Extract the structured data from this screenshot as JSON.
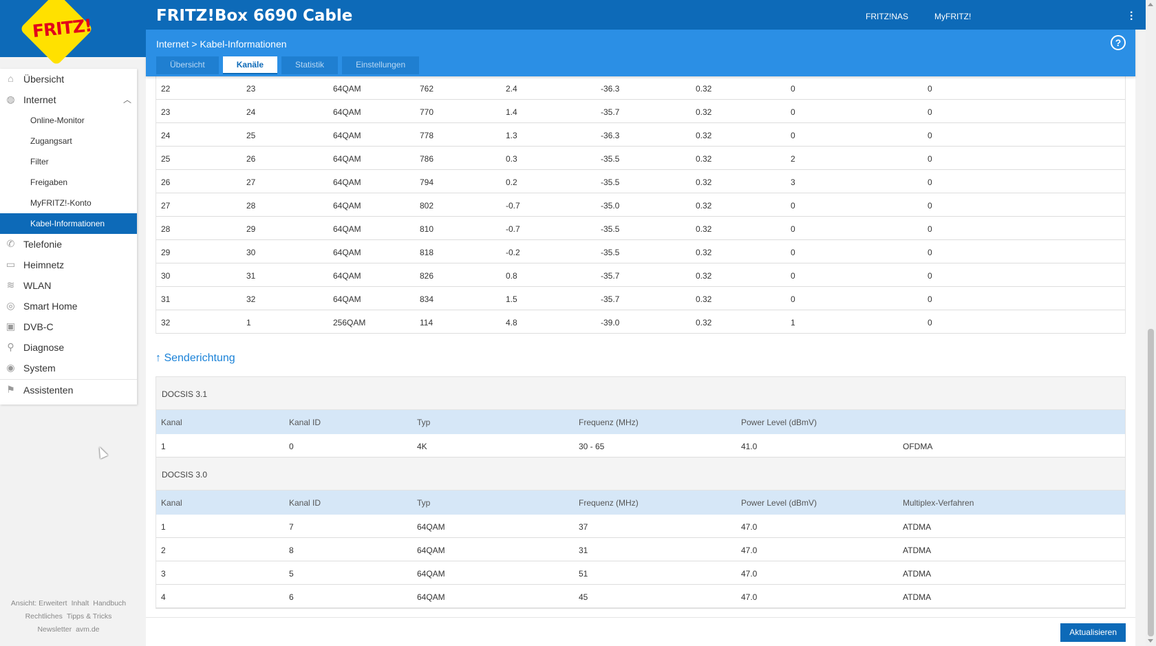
{
  "header": {
    "logo_text": "FRITZ!",
    "title": "FRITZ!Box 6690 Cable",
    "links": [
      "FRITZ!NAS",
      "MyFRITZ!"
    ]
  },
  "breadcrumb": {
    "parent": "Internet",
    "separator": ">",
    "current": "Kabel-Informationen"
  },
  "tabs": [
    {
      "label": "Übersicht",
      "active": false
    },
    {
      "label": "Kanäle",
      "active": true
    },
    {
      "label": "Statistik",
      "active": false
    },
    {
      "label": "Einstellungen",
      "active": false
    }
  ],
  "sidebar": {
    "items": [
      {
        "label": "Übersicht",
        "icon": "home-icon"
      },
      {
        "label": "Internet",
        "icon": "globe-icon",
        "expanded": true
      },
      {
        "label": "Telefonie",
        "icon": "phone-icon"
      },
      {
        "label": "Heimnetz",
        "icon": "network-icon"
      },
      {
        "label": "WLAN",
        "icon": "wifi-icon"
      },
      {
        "label": "Smart Home",
        "icon": "smarthome-icon"
      },
      {
        "label": "DVB-C",
        "icon": "tv-icon"
      },
      {
        "label": "Diagnose",
        "icon": "diagnose-icon"
      },
      {
        "label": "System",
        "icon": "system-icon"
      },
      {
        "label": "Assistenten",
        "icon": "wizard-icon"
      }
    ],
    "internet_sub": [
      "Online-Monitor",
      "Zugangsart",
      "Filter",
      "Freigaben",
      "MyFRITZ!-Konto",
      "Kabel-Informationen"
    ],
    "footer": [
      "Ansicht: Erweitert",
      "Inhalt",
      "Handbuch",
      "Rechtliches",
      "Tipps & Tricks",
      "Newsletter",
      "avm.de"
    ]
  },
  "downstream_rows": [
    [
      "22",
      "23",
      "64QAM",
      "762",
      "2.4",
      "-36.3",
      "0.32",
      "0",
      "0"
    ],
    [
      "23",
      "24",
      "64QAM",
      "770",
      "1.4",
      "-35.7",
      "0.32",
      "0",
      "0"
    ],
    [
      "24",
      "25",
      "64QAM",
      "778",
      "1.3",
      "-36.3",
      "0.32",
      "0",
      "0"
    ],
    [
      "25",
      "26",
      "64QAM",
      "786",
      "0.3",
      "-35.5",
      "0.32",
      "2",
      "0"
    ],
    [
      "26",
      "27",
      "64QAM",
      "794",
      "0.2",
      "-35.5",
      "0.32",
      "3",
      "0"
    ],
    [
      "27",
      "28",
      "64QAM",
      "802",
      "-0.7",
      "-35.0",
      "0.32",
      "0",
      "0"
    ],
    [
      "28",
      "29",
      "64QAM",
      "810",
      "-0.7",
      "-35.5",
      "0.32",
      "0",
      "0"
    ],
    [
      "29",
      "30",
      "64QAM",
      "818",
      "-0.2",
      "-35.5",
      "0.32",
      "0",
      "0"
    ],
    [
      "30",
      "31",
      "64QAM",
      "826",
      "0.8",
      "-35.7",
      "0.32",
      "0",
      "0"
    ],
    [
      "31",
      "32",
      "64QAM",
      "834",
      "1.5",
      "-35.7",
      "0.32",
      "0",
      "0"
    ],
    [
      "32",
      "1",
      "256QAM",
      "114",
      "4.8",
      "-39.0",
      "0.32",
      "1",
      "0"
    ]
  ],
  "upstream": {
    "title": "↑ Senderichtung",
    "docsis31": {
      "label": "DOCSIS 3.1",
      "headers": [
        "Kanal",
        "Kanal ID",
        "Typ",
        "Frequenz (MHz)",
        "Power Level (dBmV)",
        ""
      ],
      "rows": [
        [
          "1",
          "0",
          "4K",
          "30 - 65",
          "41.0",
          "OFDMA"
        ]
      ]
    },
    "docsis30": {
      "label": "DOCSIS 3.0",
      "headers": [
        "Kanal",
        "Kanal ID",
        "Typ",
        "Frequenz (MHz)",
        "Power Level (dBmV)",
        "Multiplex-Verfahren"
      ],
      "rows": [
        [
          "1",
          "7",
          "64QAM",
          "37",
          "47.0",
          "ATDMA"
        ],
        [
          "2",
          "8",
          "64QAM",
          "31",
          "47.0",
          "ATDMA"
        ],
        [
          "3",
          "5",
          "64QAM",
          "51",
          "47.0",
          "ATDMA"
        ],
        [
          "4",
          "6",
          "64QAM",
          "45",
          "47.0",
          "ATDMA"
        ]
      ]
    }
  },
  "refresh_button": "Aktualisieren"
}
